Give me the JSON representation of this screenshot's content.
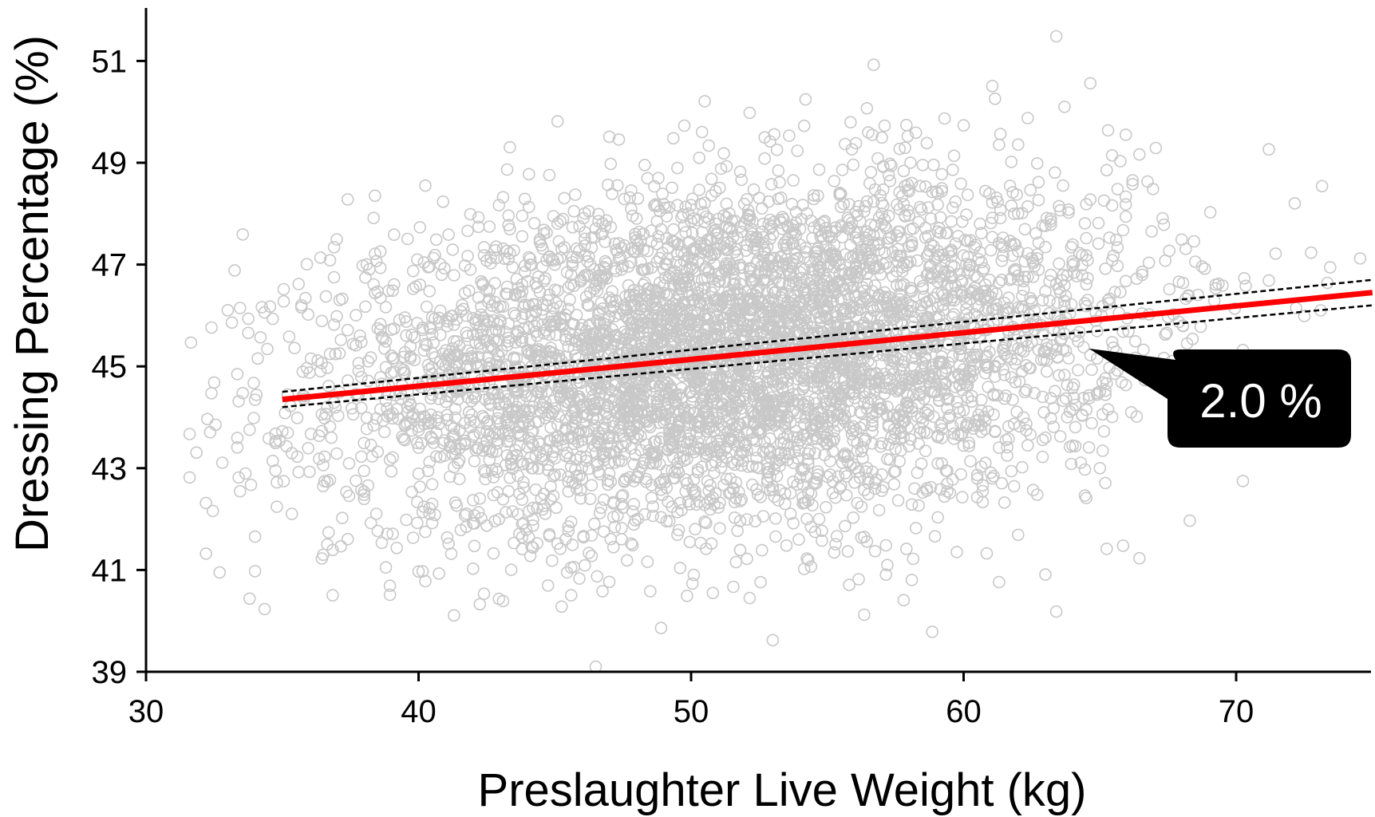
{
  "chart_data": {
    "type": "scatter",
    "title": "",
    "xlabel": "Preslaughter  Live Weight (kg)",
    "ylabel": "Dressing  Percentage (%)",
    "xlim": [
      30,
      75
    ],
    "ylim": [
      39,
      52
    ],
    "x_ticks": [
      30,
      40,
      50,
      60,
      70
    ],
    "y_ticks": [
      39,
      41,
      43,
      45,
      47,
      49,
      51
    ],
    "grid": false,
    "legend": "none",
    "scatter": {
      "name": "",
      "marker": "open-circle",
      "color": "#c8c8c8",
      "n_points": 5200,
      "x_mean": 51.5,
      "x_sd": 7.2,
      "x_range": [
        31.5,
        75
      ],
      "y_mean": 45.2,
      "y_sd": 1.65,
      "y_range": [
        39,
        51.6
      ]
    },
    "regression": {
      "color": "#ff0000",
      "x": [
        35,
        75
      ],
      "y": [
        44.35,
        46.45
      ]
    },
    "confidence_band": {
      "color": "#000000",
      "style": "dashed",
      "x": [
        35,
        75
      ],
      "upper": [
        44.5,
        46.7
      ],
      "lower": [
        44.2,
        46.2
      ]
    },
    "annotations": [
      {
        "text": "2.0 %",
        "pointer_x": 64.6,
        "pointer_y": 45.35
      }
    ]
  }
}
